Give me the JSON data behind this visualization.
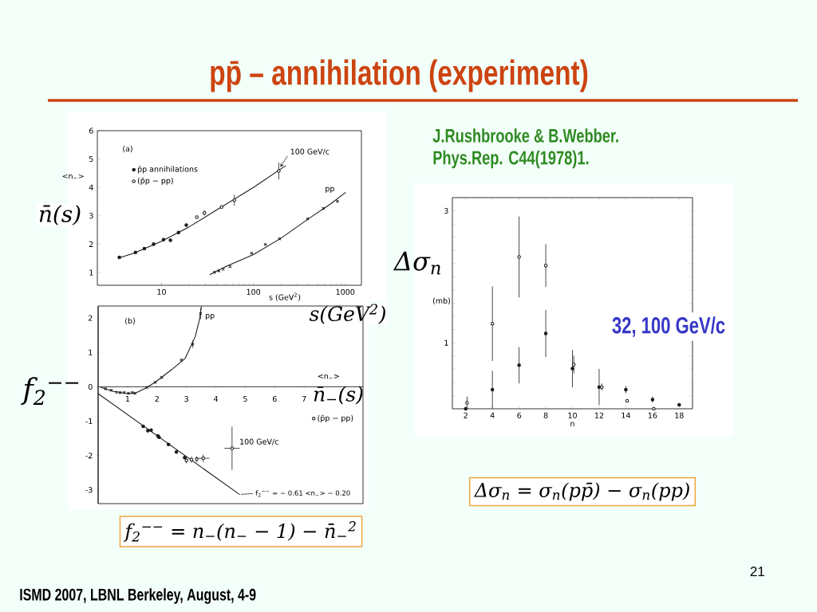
{
  "chart_data": [
    {
      "type": "scatter",
      "title": "pp̄ – annihilation (experiment)",
      "xlabel": "s (GeV$^{2}$)",
      "ylabel": "<n$_{−}$>",
      "log": "x",
      "xlim": [
        2,
        1500
      ],
      "ylim": [
        0.55,
        6
      ],
      "xticks": [
        10,
        100,
        1000
      ],
      "yticks": [
        1,
        2,
        3,
        4,
        5,
        6
      ],
      "legend": "top left",
      "series": [
        {
          "type": "line",
          "color": "#1a1a1a",
          "x": [
            3.47,
            5,
            10,
            20,
            40,
            100,
            223
          ],
          "values": [
            1.52,
            1.68,
            2.1,
            2.61,
            3.21,
            4.0,
            4.76
          ]
        },
        {
          "type": "line",
          "name": "pp",
          "color": "#1a1a1a",
          "x": [
            33.7,
            50,
            100,
            200,
            400,
            700,
            1005
          ],
          "values": [
            0.93,
            1.21,
            1.63,
            2.21,
            2.9,
            3.43,
            3.82
          ]
        },
        {
          "name": "p̄p annihilations",
          "marker": "circle",
          "color": "#1a1a1a",
          "x": [
            3.47,
            5.2,
            6.5,
            8.2,
            10.5,
            12.5,
            15.3,
            18.6
          ],
          "values": [
            1.53,
            1.71,
            1.84,
            2.0,
            2.16,
            2.14,
            2.41,
            2.67
          ]
        },
        {
          "name": "(p̄p − pp)",
          "marker": "circle",
          "color": "#1a1a1a",
          "x": [
            24.2,
            29.3,
            45,
            62,
            189
          ],
          "values": [
            2.95,
            3.1,
            3.31,
            3.55,
            4.58
          ],
          "errors": [
            null,
            0.08,
            null,
            0.18,
            0.29
          ]
        },
        {
          "marker": "cross",
          "color": "#1a1a1a",
          "x": [
            37.6,
            42,
            47,
            55.7,
            95.7,
            135,
            192,
            389,
            577,
            822
          ],
          "values": [
            1.01,
            1.06,
            1.11,
            1.21,
            1.68,
            1.99,
            2.19,
            2.89,
            3.26,
            3.51
          ]
        }
      ],
      "annotations": [
        "(a)",
        {
          "text": "100 GeV/c",
          "x": 189,
          "y": 4.58
        },
        "n̄(s)",
        "s(GeV$^{2}$)",
        "J.Rushbrooke & B.Webber.",
        "Phys.Rep. C44(1978)1.",
        "ISMD 2007, LBNL Berkeley, August, 4-9",
        "21"
      ]
    },
    {
      "type": "scatter",
      "xlabel": "<n$_{−}$>",
      "ylabel": "f$_{2}$$^{−−}$",
      "xlim": [
        0,
        9
      ],
      "ylim": [
        -3.4,
        2.35
      ],
      "xticks": [
        1,
        2,
        3,
        4,
        5,
        6,
        7
      ],
      "yticks": [
        -3,
        -2,
        -1,
        0,
        1,
        2
      ],
      "legend": "right",
      "series": [
        {
          "type": "line",
          "name": "pp",
          "color": "#1a1a1a",
          "x": [
            0.1,
            0.5,
            1.0,
            1.3,
            1.66,
            1.98,
            2.5,
            2.96,
            3.3,
            3.45,
            3.51
          ],
          "values": [
            -0.02,
            -0.13,
            -0.2,
            -0.17,
            -0.02,
            0.16,
            0.5,
            0.83,
            1.46,
            1.98,
            2.34
          ]
        },
        {
          "type": "line",
          "color": "#1a1a1a",
          "x": [
            0,
            4.8
          ],
          "values": [
            -0.2,
            -3.13
          ]
        },
        {
          "marker": "cross",
          "color": "#1a1a1a",
          "x": [
            0.25,
            0.45,
            0.62,
            0.75,
            0.89,
            1.03,
            1.16,
            1.25,
            1.66,
            1.94,
            2.16,
            2.83,
            3.21,
            3.48
          ],
          "values": [
            -0.06,
            -0.1,
            -0.16,
            -0.17,
            -0.17,
            -0.19,
            -0.17,
            -0.19,
            -0.02,
            0.13,
            0.27,
            0.78,
            1.24,
            2.13
          ],
          "errors": [
            null,
            null,
            null,
            null,
            null,
            null,
            null,
            null,
            null,
            null,
            null,
            null,
            0.1,
            0.15
          ]
        },
        {
          "marker": "circle",
          "color": "#1a1a1a",
          "x": [
            1.53,
            1.69,
            1.8,
            2.03,
            2.07,
            2.39,
            2.66,
            2.94
          ],
          "values": [
            -1.15,
            -1.28,
            -1.26,
            -1.43,
            -1.47,
            -1.68,
            -1.9,
            -2.06
          ]
        },
        {
          "name": "(p̄p − pp)",
          "marker": "circle",
          "color": "#1a1a1a",
          "x": [
            3.0,
            3.17,
            3.35,
            3.57,
            4.55
          ],
          "values": [
            -2.14,
            -2.12,
            -2.11,
            -2.08,
            -1.79
          ],
          "errors": [
            0.08,
            0.08,
            0.08,
            0.1,
            0.62
          ],
          "xerrors": [
            null,
            null,
            null,
            0.2,
            0.25
          ]
        }
      ],
      "annotations": [
        "(b)",
        {
          "text": "100 GeV/c",
          "x": 4.55,
          "y": -1.79
        },
        {
          "text": "f$_{2}$$^{−−}$ = − 0.61 <n$_{−}$> − 0.20",
          "x": 4.8,
          "y": -3.13
        },
        "n̄$_{−}$(s)",
        "f$_{2}$$^{−−}$ = n$_{−}$(n$_{−}$ − 1) − n̄$_{−}$$^{2}$"
      ]
    },
    {
      "type": "scatter",
      "xlabel": "n",
      "ylabel": "(mb)",
      "xlim": [
        1,
        19
      ],
      "ylim": [
        0,
        3.2
      ],
      "xticks": [
        2,
        4,
        6,
        8,
        10,
        12,
        14,
        16,
        18
      ],
      "yticks": [
        {
          "value": 0.2,
          "label": null
        },
        {
          "value": 0.4,
          "label": null
        },
        {
          "value": 0.6,
          "label": null
        },
        {
          "value": 0.8,
          "label": null
        },
        1,
        {
          "value": 1.2,
          "label": null
        },
        {
          "value": 1.4,
          "label": null
        },
        {
          "value": 1.6,
          "label": null
        },
        {
          "value": 1.8,
          "label": null
        },
        {
          "value": 2,
          "label": null
        },
        {
          "value": 2.2,
          "label": null
        },
        {
          "value": 2.4,
          "label": null
        },
        {
          "value": 2.6,
          "label": null
        },
        {
          "value": 2.8,
          "label": null
        },
        3
      ],
      "series": [
        {
          "marker": "circle",
          "color": "#1a1a1a",
          "x": [
            2,
            4,
            6,
            8,
            10,
            12,
            14,
            16,
            18
          ],
          "values": [
            0.0,
            0.29,
            0.66,
            1.14,
            0.61,
            0.33,
            0.29,
            0.14,
            0.06
          ],
          "errors": [
            null,
            0.28,
            0.27,
            0.35,
            0.28,
            0.27,
            0.05,
            0.04,
            null
          ]
        },
        {
          "marker": "circle",
          "color": "#1a1a1a",
          "x": [
            2.1,
            4,
            6,
            8,
            10.1,
            12.2,
            14.1,
            16.1
          ],
          "values": [
            0.09,
            1.29,
            2.3,
            2.17,
            0.67,
            0.33,
            0.12,
            0.0
          ],
          "errors": [
            0.09,
            0.56,
            0.61,
            0.32,
            0.13,
            0.05,
            null,
            null
          ]
        }
      ],
      "annotations": [
        "Δσ$_{n}$",
        "32, 100 GeV/c",
        "Δσ$_{n}$ = σ$_{n}$(pp̄) − σ$_{n}$(pp)"
      ]
    }
  ]
}
